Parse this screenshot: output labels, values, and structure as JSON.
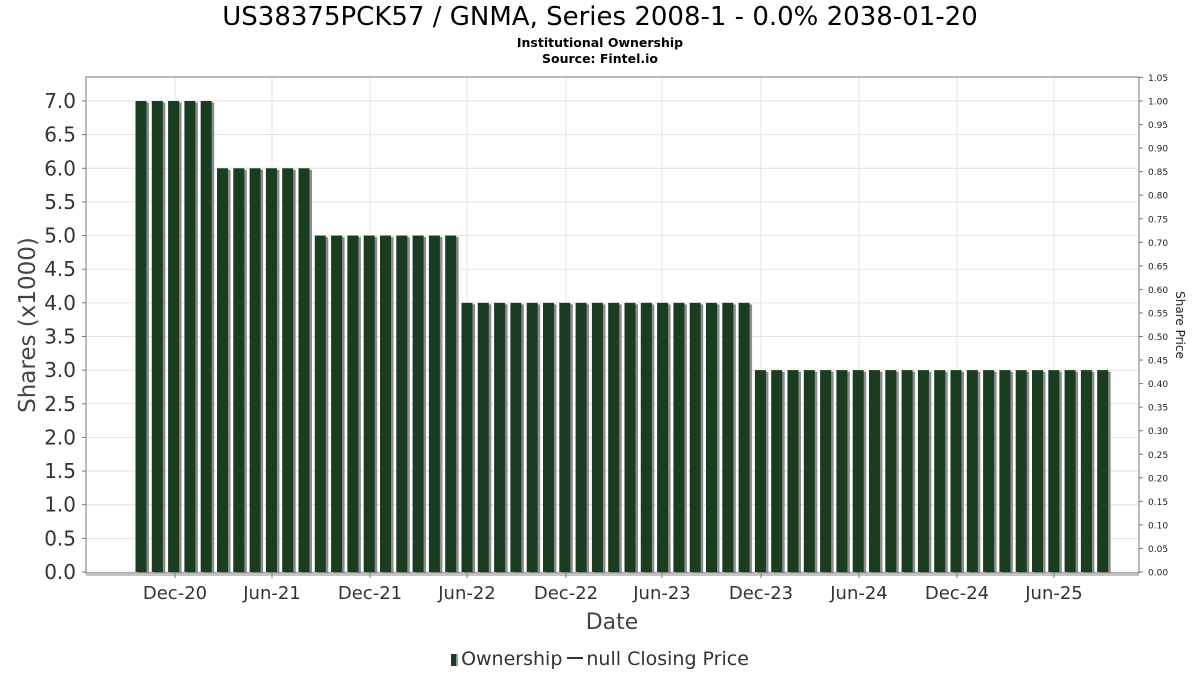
{
  "chart_data": {
    "type": "bar",
    "title": "US38375PCK57 / GNMA, Series 2008-1 - 0.0% 2038-01-20",
    "subtitle": [
      "Institutional Ownership",
      "Source: Fintel.io"
    ],
    "xlabel": "Date",
    "ylabel": "Shares (x1000)",
    "y2label": "Share Price",
    "ylim": [
      0,
      7.0
    ],
    "y2lim": [
      0,
      1.05
    ],
    "yticks": [
      "0.0",
      "0.5",
      "1.0",
      "1.5",
      "2.0",
      "2.5",
      "3.0",
      "3.5",
      "4.0",
      "4.5",
      "5.0",
      "5.5",
      "6.0",
      "6.5",
      "7.0"
    ],
    "y2ticks": [
      "0.00",
      "0.05",
      "0.10",
      "0.15",
      "0.20",
      "0.25",
      "0.30",
      "0.35",
      "0.40",
      "0.45",
      "0.50",
      "0.55",
      "0.60",
      "0.65",
      "0.70",
      "0.75",
      "0.80",
      "0.85",
      "0.90",
      "0.95",
      "1.00",
      "1.05"
    ],
    "xticks": [
      "Dec-20",
      "Jun-21",
      "Dec-21",
      "Jun-22",
      "Dec-22",
      "Jun-23",
      "Dec-23",
      "Jun-24",
      "Dec-24",
      "Jun-25"
    ],
    "grid": true,
    "legend_position": "bottom",
    "series": [
      {
        "name": "Ownership",
        "color": "#1a3d22",
        "values": [
          7,
          7,
          7,
          7,
          7,
          6,
          6,
          6,
          6,
          6,
          6,
          5,
          5,
          5,
          5,
          5,
          5,
          5,
          5,
          5,
          4,
          4,
          4,
          4,
          4,
          4,
          4,
          4,
          4,
          4,
          4,
          4,
          4,
          4,
          4,
          4,
          4,
          4,
          3,
          3,
          3,
          3,
          3,
          3,
          3,
          3,
          3,
          3,
          3,
          3,
          3,
          3,
          3,
          3,
          3,
          3,
          3,
          3,
          3,
          3
        ]
      },
      {
        "name": "null Closing Price",
        "color": "#333333",
        "values": []
      }
    ]
  }
}
